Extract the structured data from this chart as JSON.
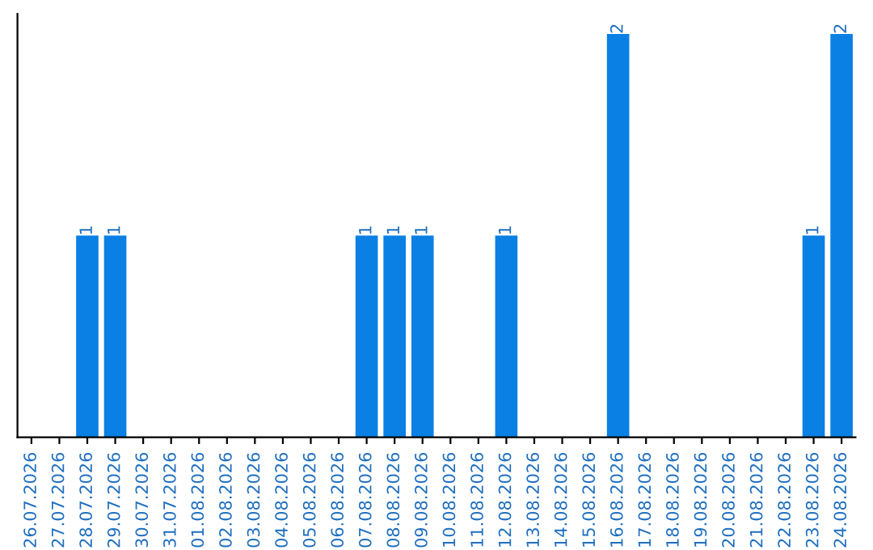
{
  "chart_data": {
    "type": "bar",
    "categories": [
      "26.07.2026",
      "27.07.2026",
      "28.07.2026",
      "29.07.2026",
      "30.07.2026",
      "31.07.2026",
      "01.08.2026",
      "02.08.2026",
      "03.08.2026",
      "04.08.2026",
      "05.08.2026",
      "06.08.2026",
      "07.08.2026",
      "08.08.2026",
      "09.08.2026",
      "10.08.2026",
      "11.08.2026",
      "12.08.2026",
      "13.08.2026",
      "14.08.2026",
      "15.08.2026",
      "16.08.2026",
      "17.08.2026",
      "18.08.2026",
      "19.08.2026",
      "20.08.2026",
      "21.08.2026",
      "22.08.2026",
      "23.08.2026",
      "24.08.2026"
    ],
    "values": [
      0,
      0,
      1,
      1,
      0,
      0,
      0,
      0,
      0,
      0,
      0,
      0,
      1,
      1,
      1,
      0,
      0,
      1,
      0,
      0,
      0,
      2,
      0,
      0,
      0,
      0,
      0,
      0,
      1,
      2
    ],
    "value_labels": [
      null,
      null,
      "1",
      "1",
      null,
      null,
      null,
      null,
      null,
      null,
      null,
      null,
      "1",
      "1",
      "1",
      null,
      null,
      "1",
      null,
      null,
      null,
      "2",
      null,
      null,
      null,
      null,
      null,
      null,
      "1",
      "2"
    ],
    "color": "#0a80e4",
    "grid": false,
    "legend": false
  }
}
